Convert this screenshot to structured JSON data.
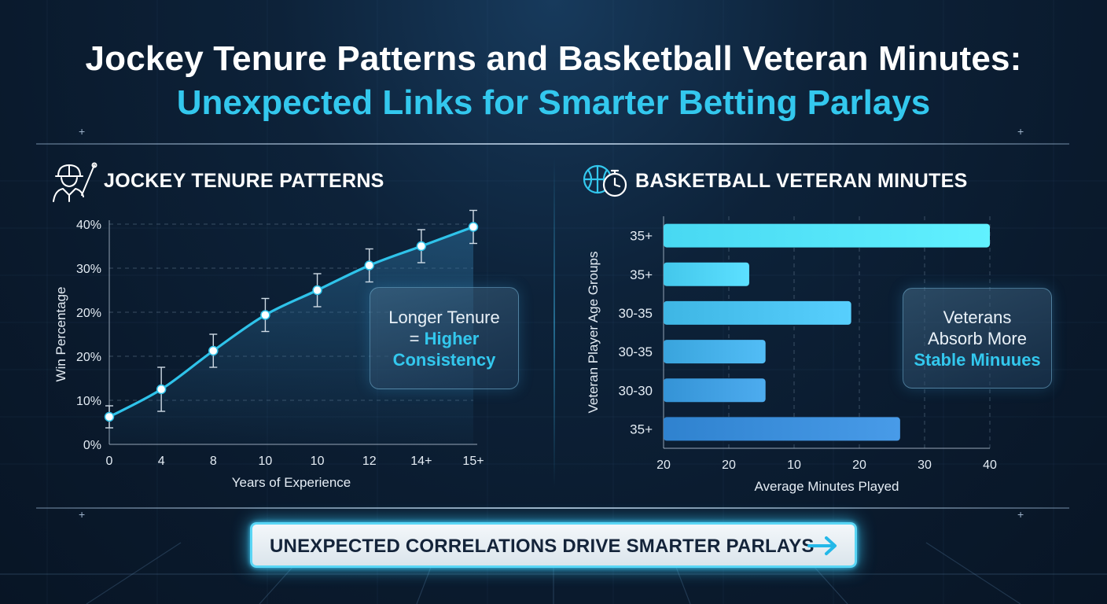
{
  "title": {
    "line1": "Jockey Tenure Patterns and Basketball Veteran Minutes:",
    "line2": "Unexpected Links for Smarter Betting Parlays"
  },
  "colors": {
    "accent": "#33c8ee",
    "title": "#ffffff",
    "background": "#0d2239",
    "line_series": "#2fc3ea",
    "bar_light": "#48d8f2",
    "bar_dark": "#2f82cf"
  },
  "left_panel": {
    "title": "JOCKEY TENURE PATTERNS",
    "icon": "jockey-icon",
    "callout": {
      "line1": "Longer Tenure",
      "line2_prefix": "= ",
      "line2_highlight": "Higher",
      "line3_highlight": "Consistency"
    }
  },
  "right_panel": {
    "title": "BASKETBALL VETERAN MINUTES",
    "icon": "basketball-stopwatch-icon",
    "callout": {
      "line1": "Veterans",
      "line2": "Absorb More",
      "line3_highlight": "Stable Minuues"
    }
  },
  "cta": {
    "label": "UNEXPECTED CORRELATIONS DRIVE SMARTER PARLAYS",
    "icon": "arrow-right-icon"
  },
  "chart_data": [
    {
      "type": "line",
      "xlabel": "Years of Experience",
      "ylabel": "Win Percentage",
      "x_tick_labels": [
        "0",
        "4",
        "8",
        "10",
        "10",
        "12",
        "14+",
        "15+"
      ],
      "y_tick_labels": [
        "0%",
        "10%",
        "20%",
        "20%",
        "30%",
        "40%"
      ],
      "ylim": [
        0,
        40
      ],
      "grid": "dashed horizontal",
      "series": [
        {
          "values": [
            5,
            10,
            17,
            23.5,
            28,
            32.5,
            36,
            39.5
          ],
          "error": [
            2,
            4,
            3,
            3,
            3,
            3,
            3,
            3
          ]
        }
      ]
    },
    {
      "type": "bar",
      "orientation": "horizontal",
      "xlabel": "Average Minutes Played",
      "ylabel": "Veteran Player Age Groups",
      "categories": [
        "35+",
        "35+",
        "30-35",
        "30-35",
        "30-30",
        "35+"
      ],
      "x_tick_labels": [
        "20",
        "20",
        "10",
        "20",
        "30",
        "40"
      ],
      "values": [
        40,
        10.5,
        23,
        12.5,
        12.5,
        29
      ]
    }
  ]
}
